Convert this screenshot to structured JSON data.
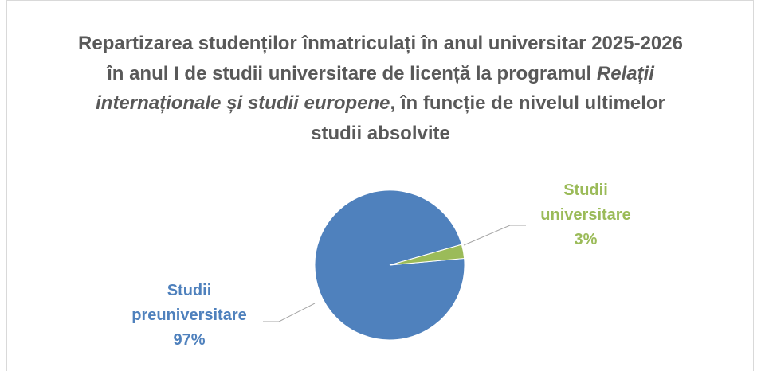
{
  "chart_data": {
    "type": "pie",
    "title": [
      {
        "text": "Repartizarea studenților înmatriculați în anul universitar 2025-2026 în anul I de studii universitare de licență la programul ",
        "italic": false
      },
      {
        "text": "Relații internaționale și studii europene",
        "italic": true
      },
      {
        "text": ", în funcție de nivelul ultimelor studii absolvite",
        "italic": false
      }
    ],
    "categories": [
      "Studii preuniversitare",
      "Studii universitare"
    ],
    "values": [
      97,
      3
    ],
    "value_labels": [
      "97%",
      "3%"
    ],
    "colors": [
      "#4f81bd",
      "#9bbb59"
    ]
  }
}
